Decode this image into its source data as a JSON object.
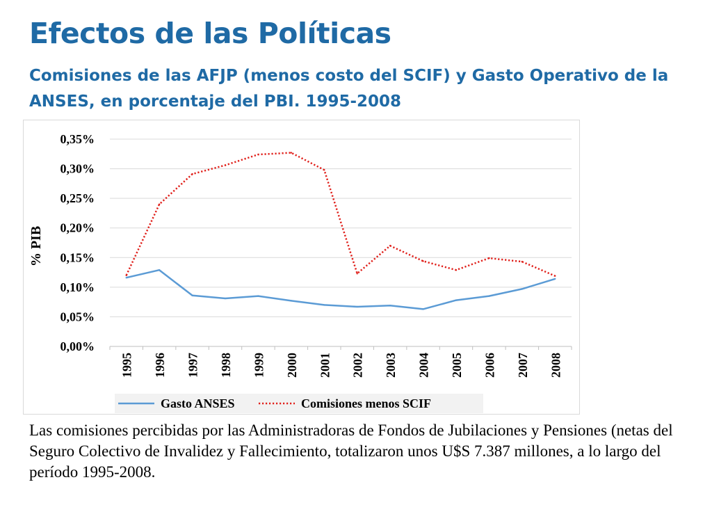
{
  "header": {
    "title": "Efectos de las Políticas",
    "subtitle": "Comisiones de las AFJP (menos costo del SCIF) y Gasto Operativo de la ANSES, en porcentaje del PBI. 1995-2008"
  },
  "chart_data": {
    "type": "line",
    "categories": [
      "1995",
      "1996",
      "1997",
      "1998",
      "1999",
      "2000",
      "2001",
      "2002",
      "2003",
      "2004",
      "2005",
      "2006",
      "2007",
      "2008"
    ],
    "series": [
      {
        "name": "Gasto ANSES",
        "color": "#5b9bd5",
        "style": "solid",
        "values": [
          0.116,
          0.129,
          0.086,
          0.081,
          0.085,
          0.077,
          0.07,
          0.067,
          0.069,
          0.063,
          0.078,
          0.085,
          0.097,
          0.114
        ]
      },
      {
        "name": "Comisiones menos SCIF",
        "color": "#e0201b",
        "style": "dotted",
        "values": [
          0.12,
          0.24,
          0.291,
          0.306,
          0.324,
          0.327,
          0.298,
          0.123,
          0.17,
          0.144,
          0.129,
          0.149,
          0.143,
          0.119
        ]
      }
    ],
    "ylabel": "% PIB",
    "ylim": [
      0,
      0.35
    ],
    "yticks": [
      "0,00%",
      "0,05%",
      "0,10%",
      "0,15%",
      "0,20%",
      "0,25%",
      "0,30%",
      "0,35%"
    ],
    "grid": true,
    "legend_position": "bottom"
  },
  "caption": "Las comisiones percibidas por las Administradoras de Fondos de Jubilaciones y Pensiones (netas del Seguro Colectivo de Invalidez y Fallecimiento, totalizaron unos U$S 7.387 millones, a lo largo del período 1995-2008."
}
